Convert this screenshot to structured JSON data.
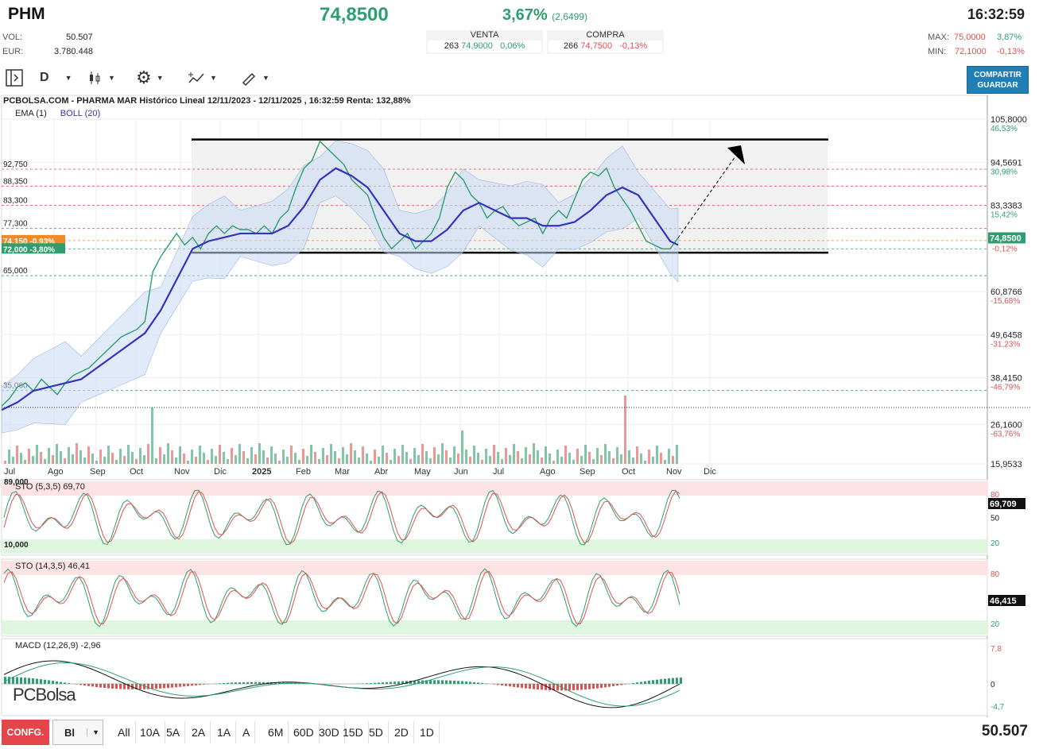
{
  "header": {
    "ticker": "PHM",
    "last_price": "74,8500",
    "change_pct": "3,67%",
    "change_abs": "(2,6499)",
    "time": "16:32:59",
    "vol_label": "VOL:",
    "vol_value": "50.507",
    "eur_label": "EUR:",
    "eur_value": "3.780.448",
    "max_label": "MAX:",
    "max_value": "75,0000",
    "max_pct": "3,87%",
    "min_label": "MIN:",
    "min_value": "72,1000",
    "min_pct": "-0,13%"
  },
  "quotes": {
    "sell": {
      "title": "VENTA",
      "qty": "263",
      "price": "74,9000",
      "pct": "0,06%"
    },
    "buy": {
      "title": "COMPRA",
      "qty": "266",
      "price": "74,7500",
      "pct": "-0,13%"
    }
  },
  "toolbar": {
    "period": "D",
    "share_label_1": "COMPARTIR",
    "share_label_2": "GUARDAR"
  },
  "chart_header": {
    "title": "PCBOLSA.COM - PHARMA MAR Histórico Lineal 12/11/2023 - 12/11/2025 , 16:32:59 Renta: 132,88%",
    "ema_label": "EMA (1)",
    "boll_label": "BOLL (20)"
  },
  "chart_data": {
    "type": "line",
    "title": "PCBOLSA.COM - PHARMA MAR Histórico Lineal 12/11/2023 - 12/11/2025 , 16:32:59 Renta: 132,88%",
    "x_tick_labels": [
      "Jul",
      "Ago",
      "Sep",
      "Oct",
      "Nov",
      "Dic",
      "2025",
      "Feb",
      "Mar",
      "Abr",
      "May",
      "Jun",
      "Jul",
      "Ago",
      "Sep",
      "Oct",
      "Nov",
      "Dic"
    ],
    "y_right_ticks": [
      {
        "value": 105.8,
        "label": "105,8000",
        "pct": "46,53%"
      },
      {
        "value": 94.5691,
        "label": "94,5691",
        "pct": "30,98%"
      },
      {
        "value": 83.3383,
        "label": "83,3383",
        "pct": "15,42%"
      },
      {
        "value": 60.8766,
        "label": "60,8766",
        "pct": "-15,68%"
      },
      {
        "value": 49.6458,
        "label": "49,6458",
        "pct": "-31,23%"
      },
      {
        "value": 38.415,
        "label": "38,4150",
        "pct": "-46,79%"
      },
      {
        "value": 26.16,
        "label": "26,1600",
        "pct": "-63,76%"
      },
      {
        "value": 15.9533,
        "label": "15,9533",
        "pct": ""
      }
    ],
    "last_label": "74,8500",
    "last_pct": "-0,12%",
    "ylim": [
      15.9533,
      105.8
    ],
    "horizontal_levels": [
      {
        "value": 92.75,
        "label": "92,750",
        "color": "#e05050"
      },
      {
        "value": 88.35,
        "label": "88,350",
        "color": "#e05050"
      },
      {
        "value": 83.3,
        "label": "83,300",
        "color": "#e05050"
      },
      {
        "value": 77.3,
        "label": "77,300",
        "color": "#e05050"
      },
      {
        "value": 74.15,
        "label": "74,150 -0,93%",
        "color": "#f08a24"
      },
      {
        "value": 72.0,
        "label": "72,000 -3,80%",
        "color": "#2e9e6e"
      },
      {
        "value": 65.0,
        "label": "65,000",
        "color": "#2e9e6e"
      },
      {
        "value": 35.06,
        "label": "35,060",
        "color": "#2e9e6e"
      }
    ],
    "channel": {
      "top": 100.5,
      "bottom": 71.0
    },
    "series": [
      {
        "name": "EMA (1)",
        "color": "#2e9e6e",
        "x": [
          0,
          10,
          20,
          30,
          40,
          50,
          60,
          70,
          80,
          90,
          100,
          110,
          120,
          130,
          140,
          150,
          160,
          170,
          180,
          190,
          200,
          210,
          220,
          230,
          240,
          250,
          260,
          270,
          280,
          290,
          300,
          310,
          320,
          330,
          340,
          350,
          360,
          370,
          380,
          390,
          400,
          410,
          420,
          430,
          440,
          450,
          460,
          470,
          480,
          490,
          500,
          510,
          520,
          530,
          540,
          550,
          560,
          570,
          580,
          590,
          600,
          610,
          620,
          630,
          640,
          650,
          660,
          670,
          680,
          690,
          700,
          710,
          720,
          730,
          740,
          750,
          760,
          770,
          780,
          790,
          800,
          810,
          820,
          830,
          840,
          850
        ],
        "y": [
          31,
          33,
          36,
          37,
          35,
          38,
          36,
          34,
          37,
          39,
          40,
          41,
          43,
          45,
          47,
          49,
          50,
          51,
          53,
          66,
          70,
          73,
          76,
          73,
          75,
          72,
          76,
          78,
          76,
          78,
          77,
          77,
          76,
          78,
          76,
          80,
          82,
          88,
          93,
          95,
          100,
          98,
          96,
          94,
          90,
          88,
          86,
          80,
          75,
          72,
          74,
          76,
          72,
          74,
          76,
          80,
          88,
          92,
          90,
          86,
          84,
          80,
          82,
          83,
          80,
          78,
          79,
          80,
          76,
          80,
          82,
          80,
          85,
          90,
          92,
          91,
          93,
          88,
          85,
          82,
          78,
          74,
          73,
          72,
          72,
          74.85
        ],
        "xlim": [
          0,
          850
        ]
      },
      {
        "name": "BOLL (20)",
        "color": "#3333bb",
        "x": [
          0,
          20,
          40,
          60,
          80,
          100,
          120,
          140,
          160,
          180,
          200,
          220,
          240,
          260,
          280,
          300,
          320,
          340,
          360,
          380,
          400,
          420,
          440,
          460,
          480,
          500,
          520,
          540,
          560,
          580,
          600,
          620,
          640,
          660,
          680,
          700,
          720,
          740,
          760,
          780,
          800,
          820,
          840,
          850
        ],
        "y": [
          30,
          32,
          35,
          36,
          37,
          38,
          41,
          44,
          47,
          50,
          56,
          64,
          72,
          74,
          75,
          76,
          76,
          76,
          78,
          83,
          90,
          93,
          91,
          88,
          82,
          76,
          74,
          74,
          77,
          82,
          84,
          82,
          80,
          80,
          78,
          78,
          79,
          82,
          86,
          88,
          86,
          80,
          74,
          73
        ]
      }
    ],
    "volume": {
      "note": "volume histogram",
      "max_visible": 1
    },
    "sub_indicators": [
      {
        "name": "STO (5,3,5)",
        "value": "69,70",
        "last_label": "69,709",
        "levels": [
          "80",
          "50",
          "20"
        ],
        "left_labels": [
          "89,000",
          "10,000"
        ]
      },
      {
        "name": "STO (14,3,5)",
        "value": "46,41",
        "last_label": "46,415",
        "levels": [
          "80",
          "50",
          "20"
        ]
      },
      {
        "name": "MACD (12,26,9)",
        "value": "-2,96",
        "levels": [
          "7,8",
          "0",
          "-4,7"
        ]
      }
    ]
  },
  "footer": {
    "confg_label": "CONFG.",
    "bl_label": "Bl",
    "periods": [
      "All",
      "10A",
      "5A",
      "2A",
      "1A",
      "A",
      "6M",
      "60D",
      "30D",
      "15D",
      "5D",
      "2D",
      "1D"
    ],
    "volume_total": "50.507",
    "logo": "PCBolsa"
  },
  "colors": {
    "accent_green": "#2e9e6e",
    "accent_red": "#e05050",
    "share_blue": "#1f7fb6",
    "confg_red": "#e3464a"
  }
}
